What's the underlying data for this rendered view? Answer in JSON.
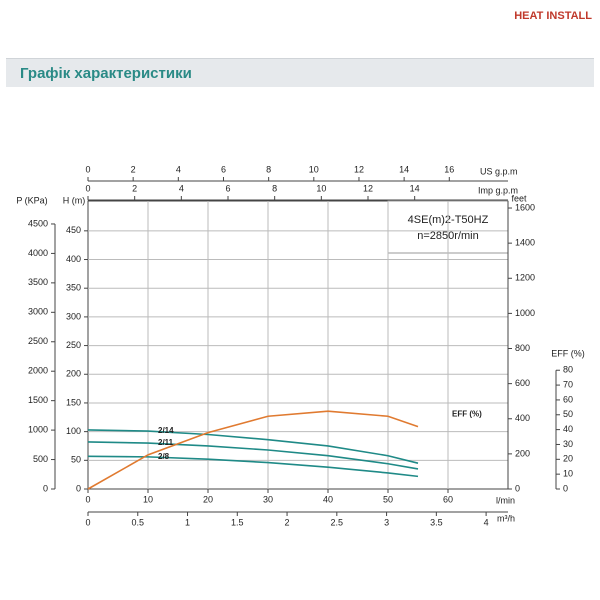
{
  "header": {
    "logo": "HEAT INSTALL",
    "section_title": "Графік характеристики"
  },
  "chart_data": {
    "type": "line",
    "annotation": [
      "4SE(m)2-T50HZ",
      "n=2850r/min"
    ],
    "x": [
      0,
      10,
      20,
      30,
      40,
      50,
      55
    ],
    "xlim": [
      0,
      70
    ],
    "xticks": [
      0,
      10,
      20,
      30,
      40,
      50,
      60
    ],
    "x_label": "l/min",
    "ylim": [
      0,
      502
    ],
    "yticks": [
      0,
      50,
      100,
      150,
      200,
      250,
      300,
      350,
      400,
      450
    ],
    "y_label": "H (m)",
    "grid": true,
    "series": [
      {
        "name": "2/14",
        "color": "#1f8a87",
        "values": [
          103,
          101,
          95,
          86,
          75,
          58,
          45
        ]
      },
      {
        "name": "2/11",
        "color": "#1f8a87",
        "values": [
          82,
          80,
          75,
          68,
          58,
          44,
          35
        ]
      },
      {
        "name": "2/8",
        "color": "#1f8a87",
        "values": [
          57,
          56,
          52,
          46,
          38,
          28,
          22
        ]
      },
      {
        "name": "EFF (%)",
        "color": "#e07a30",
        "axis": "y2",
        "values": [
          0,
          23,
          38,
          49,
          52.4,
          49,
          42
        ]
      }
    ],
    "y2lim": [
      0,
      194
    ],
    "y2ticks": [
      0,
      10,
      20,
      30,
      40,
      50,
      60,
      70,
      80
    ],
    "y2_label": "EFF (%)",
    "extra_axes": [
      {
        "side": "left",
        "label": "P (KPa)",
        "lim": [
          0,
          4890
        ],
        "ticks": [
          0,
          500,
          1000,
          1500,
          2000,
          2500,
          3000,
          3500,
          4000,
          4500
        ]
      },
      {
        "side": "right",
        "label": "feet",
        "lim": [
          0,
          1640
        ],
        "ticks": [
          0,
          200,
          400,
          600,
          800,
          1000,
          1200,
          1400,
          1600
        ]
      },
      {
        "side": "top-outer",
        "label": "US g.p.m",
        "lim": [
          0,
          18.6
        ],
        "ticks": [
          0,
          2,
          4,
          6,
          8,
          10,
          12,
          14,
          16
        ]
      },
      {
        "side": "top",
        "label": "Imp g.p.m",
        "lim": [
          0,
          18
        ],
        "ticks": [
          0,
          2,
          4,
          6,
          8,
          10,
          12,
          14
        ]
      },
      {
        "side": "bottom",
        "label": "m³/h",
        "lim": [
          0,
          4.22
        ],
        "ticks": [
          0,
          0.5,
          1,
          1.5,
          2,
          2.5,
          3,
          3.5,
          4
        ]
      }
    ]
  }
}
